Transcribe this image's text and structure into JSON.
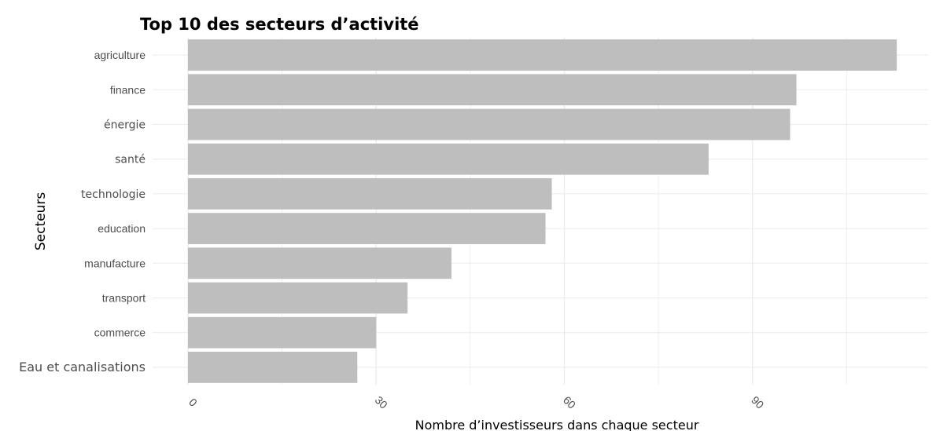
{
  "chart_data": {
    "type": "bar",
    "orientation": "horizontal",
    "title": "Top 10 des secteurs d’activité",
    "xlabel": "Nombre d’investisseurs dans chaque secteur",
    "ylabel": "Secteurs",
    "categories": [
      "agriculture",
      "finance",
      "énergie",
      "santé",
      "technologie",
      "education",
      "manufacture",
      "transport",
      "commerce",
      "Eau et canalisations"
    ],
    "values": [
      113,
      97,
      96,
      83,
      58,
      57,
      42,
      35,
      30,
      27
    ],
    "xlim": [
      0,
      118
    ],
    "xticks": [
      0,
      30,
      60,
      90
    ],
    "xtick_labels": [
      "0",
      "30",
      "60",
      "90"
    ],
    "grid": true,
    "bar_color": "#bebebe",
    "grid_color": "#ebebeb"
  }
}
